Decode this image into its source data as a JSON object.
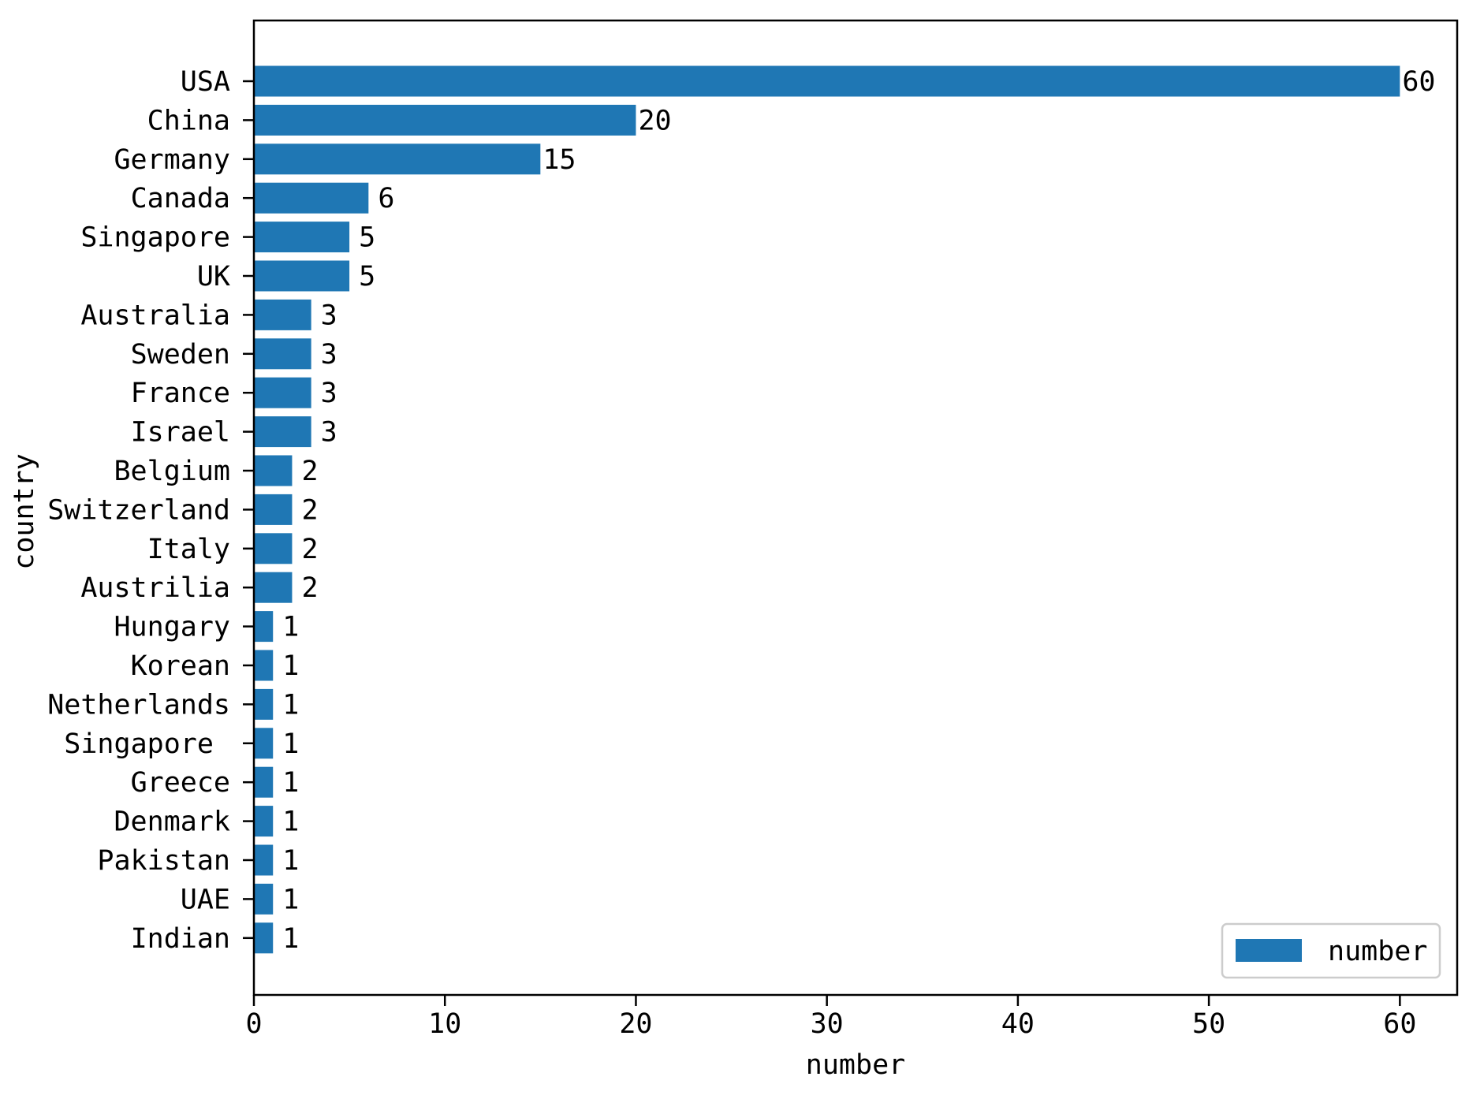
{
  "colors": {
    "bar": "#1f77b4",
    "axis": "#000000",
    "background": "#ffffff",
    "legend_border": "#cccccc"
  },
  "chart_data": {
    "type": "bar",
    "orientation": "horizontal",
    "categories": [
      "USA",
      "China",
      "Germany",
      "Canada",
      "Singapore",
      "UK",
      "Australia",
      "Sweden",
      "France",
      "Israel",
      "Belgium",
      "Switzerland",
      "Italy",
      "Austrilia",
      "Hungary",
      "Korean",
      "Netherlands",
      "Singapore ",
      "Greece",
      "Denmark",
      "Pakistan",
      "UAE",
      "Indian"
    ],
    "series": [
      {
        "name": "number",
        "values": [
          60,
          20,
          15,
          6,
          5,
          5,
          3,
          3,
          3,
          3,
          2,
          2,
          2,
          2,
          1,
          1,
          1,
          1,
          1,
          1,
          1,
          1,
          1
        ]
      }
    ],
    "data_labels": [
      "60",
      "20",
      "15",
      "6",
      "5",
      "5",
      "3",
      "3",
      "3",
      "3",
      "2",
      "2",
      "2",
      "2",
      "1",
      "1",
      "1",
      "1",
      "1",
      "1",
      "1",
      "1",
      "1"
    ],
    "xlabel": "number",
    "ylabel": "country",
    "xlim": [
      0,
      63
    ],
    "xticks": [
      0,
      10,
      20,
      30,
      40,
      50,
      60
    ],
    "xtick_labels": [
      "0",
      "10",
      "20",
      "30",
      "40",
      "50",
      "60"
    ],
    "grid": false,
    "legend": {
      "position": "bottom-right",
      "entries": [
        "number"
      ]
    }
  }
}
